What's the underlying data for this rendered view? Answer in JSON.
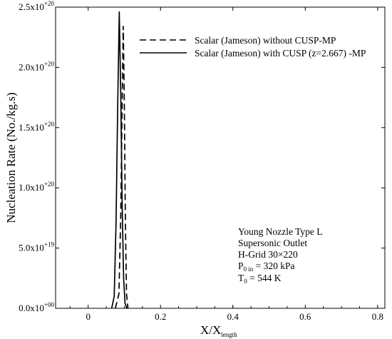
{
  "chart_data": {
    "type": "line",
    "xlabel": "X/X",
    "xlabel_sub": "length",
    "ylabel": "Nucleation Rate (No./kg.s)",
    "xlim": [
      -0.09,
      0.82
    ],
    "ylim": [
      0,
      2.5e+20
    ],
    "x_ticks": [
      {
        "value": 0,
        "label": "0"
      },
      {
        "value": 0.2,
        "label": "0.2"
      },
      {
        "value": 0.4,
        "label": "0.4"
      },
      {
        "value": 0.6,
        "label": "0.6"
      },
      {
        "value": 0.8,
        "label": "0.8"
      }
    ],
    "y_ticks": [
      {
        "value": 0,
        "mant": "0.0x10",
        "exp": "+00"
      },
      {
        "value": 5e+19,
        "mant": "5.0x10",
        "exp": "+19"
      },
      {
        "value": 1e+20,
        "mant": "1.0x10",
        "exp": "+20"
      },
      {
        "value": 1.5e+20,
        "mant": "1.5x10",
        "exp": "+20"
      },
      {
        "value": 2e+20,
        "mant": "2.0x10",
        "exp": "+20"
      },
      {
        "value": 2.5e+20,
        "mant": "2.5x10",
        "exp": "+20"
      }
    ],
    "series": [
      {
        "name": "Scalar (Jameson) without CUSP-MP",
        "dash": "dashed",
        "x": [
          0.075,
          0.085,
          0.09,
          0.094,
          0.097,
          0.1,
          0.103,
          0.106,
          0.11
        ],
        "y": [
          0,
          1.2e+19,
          7.5e+19,
          1.7e+20,
          2.34e+20,
          1.7e+20,
          7e+19,
          1.2e+19,
          0
        ]
      },
      {
        "name": "Scalar (Jameson) with CUSP (z=2.667) -MP",
        "dash": "solid",
        "x": [
          0.065,
          0.072,
          0.077,
          0.082,
          0.086,
          0.09,
          0.094,
          0.098,
          0.102,
          0.107
        ],
        "y": [
          0,
          1e+19,
          7e+19,
          1.75e+20,
          2.46e+20,
          1.8e+20,
          8.5e+19,
          2.5e+19,
          4e+18,
          0
        ]
      }
    ],
    "legend_position": "top-right",
    "annotations": [
      {
        "text": "Young Nozzle Type L"
      },
      {
        "text": "Supersonic Outlet"
      },
      {
        "text": "H-Grid 30×220"
      },
      {
        "text": "P",
        "sub": "0 in",
        "rest": " = 320 kPa"
      },
      {
        "text": "T",
        "sub": "0",
        "rest": " = 544 K"
      }
    ]
  }
}
